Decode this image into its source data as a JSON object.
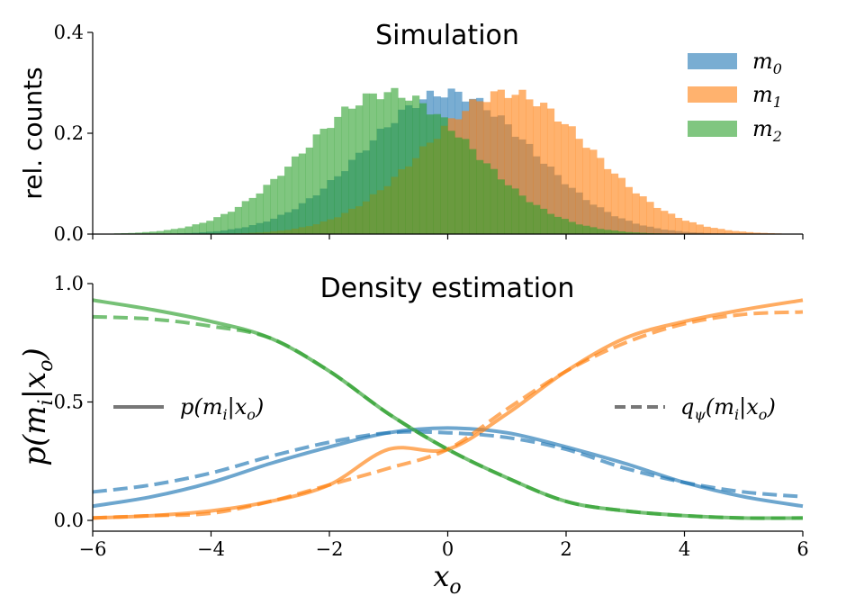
{
  "chart_data": [
    {
      "type": "bar",
      "title": "Simulation",
      "xlabel": "",
      "ylabel": "rel. counts",
      "xlim": [
        -6,
        6
      ],
      "ylim": [
        0,
        0.4
      ],
      "yticks": [
        "0.0",
        "0.2",
        "0.4"
      ],
      "legend_position": "top-right",
      "grid": false,
      "bin_width": 0.12,
      "series": [
        {
          "name": "m0",
          "legend_base": "m",
          "legend_sub": "0",
          "color": "#1f77b4",
          "distribution": "normal",
          "mean": 0,
          "sd": 1.4,
          "peak": 0.28
        },
        {
          "name": "m1",
          "legend_base": "m",
          "legend_sub": "1",
          "color": "#ff7f0e",
          "distribution": "normal",
          "mean": 1.0,
          "sd": 1.4,
          "peak": 0.28
        },
        {
          "name": "m2",
          "legend_base": "m",
          "legend_sub": "2",
          "color": "#2ca02c",
          "distribution": "normal",
          "mean": -1.0,
          "sd": 1.4,
          "peak": 0.28
        }
      ]
    },
    {
      "type": "line",
      "title": "Density estimation",
      "xlabel": "x_o",
      "ylabel": "p(m_i|x_o)",
      "xlim": [
        -6,
        6
      ],
      "ylim": [
        -0.02,
        1.0
      ],
      "xticks": [
        "−6",
        "−4",
        "−2",
        "0",
        "2",
        "4",
        "6"
      ],
      "yticks": [
        "0.0",
        "0.5",
        "1.0"
      ],
      "grid": false,
      "legend": [
        {
          "style": "solid",
          "label": "p(m_i|x_o)",
          "position": "left"
        },
        {
          "style": "dashed",
          "label": "q_ψ(m_i|x_o)",
          "position": "right"
        }
      ],
      "x": [
        -6,
        -5,
        -4,
        -3,
        -2,
        -1,
        0,
        1,
        2,
        3,
        4,
        5,
        6
      ],
      "series": [
        {
          "name": "m0 true",
          "color": "#1f77b4",
          "style": "solid",
          "values": [
            0.06,
            0.1,
            0.16,
            0.24,
            0.31,
            0.37,
            0.39,
            0.37,
            0.31,
            0.24,
            0.16,
            0.1,
            0.06
          ]
        },
        {
          "name": "m1 true",
          "color": "#ff7f0e",
          "style": "solid",
          "values": [
            0.01,
            0.02,
            0.04,
            0.08,
            0.15,
            0.3,
            0.3,
            0.45,
            0.63,
            0.77,
            0.84,
            0.89,
            0.93
          ]
        },
        {
          "name": "m2 true",
          "color": "#2ca02c",
          "style": "solid",
          "values": [
            0.93,
            0.89,
            0.84,
            0.77,
            0.63,
            0.45,
            0.3,
            0.18,
            0.08,
            0.04,
            0.02,
            0.01,
            0.01
          ]
        },
        {
          "name": "m0 estimate",
          "color": "#1f77b4",
          "style": "dashed",
          "values": [
            0.12,
            0.15,
            0.2,
            0.27,
            0.33,
            0.37,
            0.37,
            0.35,
            0.3,
            0.22,
            0.16,
            0.12,
            0.1
          ]
        },
        {
          "name": "m1 estimate",
          "color": "#ff7f0e",
          "style": "dashed",
          "values": [
            0.01,
            0.02,
            0.03,
            0.08,
            0.15,
            0.22,
            0.3,
            0.47,
            0.63,
            0.75,
            0.83,
            0.87,
            0.88
          ]
        },
        {
          "name": "m2 estimate",
          "color": "#2ca02c",
          "style": "dashed",
          "values": [
            0.86,
            0.85,
            0.82,
            0.77,
            0.63,
            0.45,
            0.3,
            0.18,
            0.08,
            0.04,
            0.02,
            0.01,
            0.01
          ]
        }
      ]
    }
  ]
}
